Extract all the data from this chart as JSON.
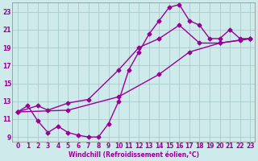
{
  "xlabel": "Windchill (Refroidissement éolien,°C)",
  "background_color": "#ceeaea",
  "grid_color": "#aacccc",
  "line_color": "#990099",
  "spine_color": "#888888",
  "xlim": [
    -0.5,
    23.5
  ],
  "ylim": [
    8.5,
    24.0
  ],
  "xticks": [
    0,
    1,
    2,
    3,
    4,
    5,
    6,
    7,
    8,
    9,
    10,
    11,
    12,
    13,
    14,
    15,
    16,
    17,
    18,
    19,
    20,
    21,
    22,
    23
  ],
  "yticks": [
    9,
    11,
    13,
    15,
    17,
    19,
    21,
    23
  ],
  "series1_x": [
    0,
    1,
    2,
    3,
    4,
    5,
    6,
    7,
    8,
    9,
    10,
    11,
    12,
    13,
    14,
    15,
    16,
    17,
    18,
    19,
    20,
    21,
    22,
    23
  ],
  "series1_y": [
    11.8,
    12.5,
    10.8,
    9.5,
    10.2,
    9.5,
    9.2,
    9.0,
    9.0,
    10.5,
    13.0,
    16.5,
    18.5,
    20.5,
    22.0,
    23.5,
    23.8,
    22.0,
    21.5,
    20.0,
    20.0,
    21.0,
    20.0,
    20.0
  ],
  "series2_x": [
    0,
    2,
    3,
    5,
    7,
    10,
    12,
    14,
    16,
    18,
    20,
    22,
    23
  ],
  "series2_y": [
    11.8,
    12.5,
    12.0,
    12.8,
    13.2,
    16.5,
    19.0,
    20.0,
    21.5,
    19.5,
    19.5,
    19.8,
    20.0
  ],
  "series3_x": [
    0,
    5,
    10,
    14,
    17,
    20,
    23
  ],
  "series3_y": [
    11.8,
    12.0,
    13.5,
    16.0,
    18.5,
    19.5,
    20.0
  ],
  "marker": "D",
  "markersize": 2.5,
  "linewidth": 1.0,
  "tick_fontsize": 5.5,
  "xlabel_fontsize": 5.5,
  "figsize": [
    3.2,
    2.0
  ],
  "dpi": 100
}
